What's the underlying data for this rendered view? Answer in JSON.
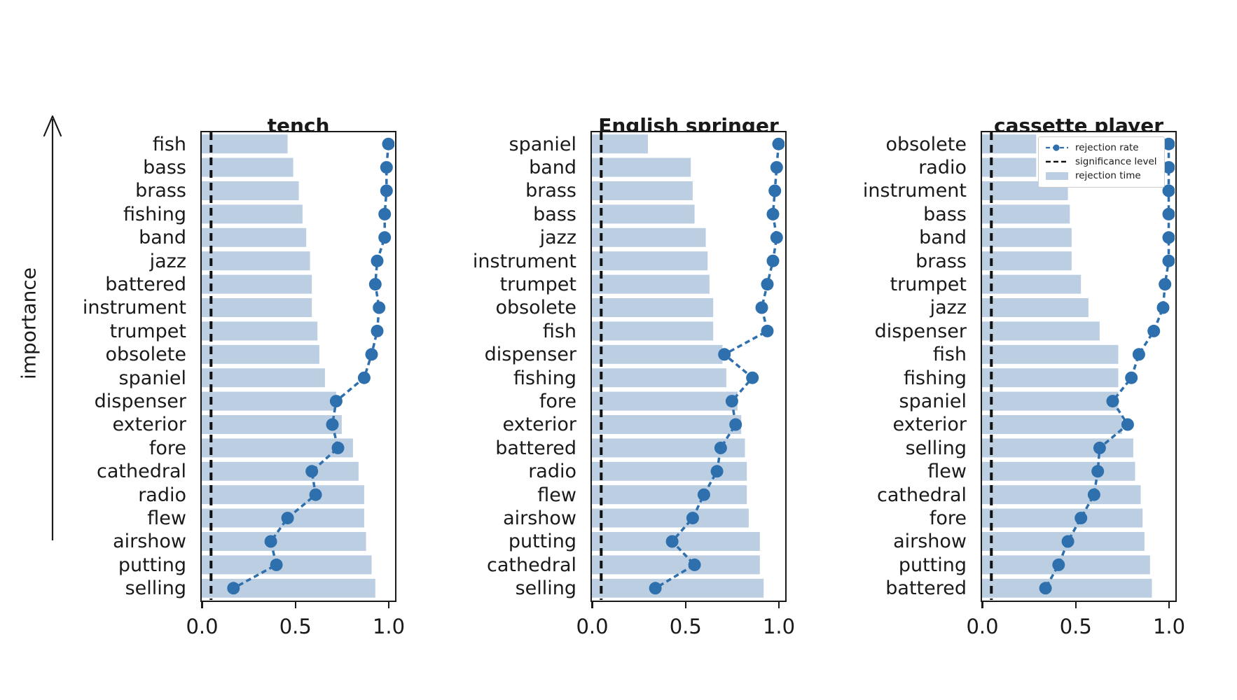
{
  "figure": {
    "yaxis": {
      "label": "importance",
      "arrow_direction": "up"
    },
    "colors": {
      "bar_fill": "#bccfe2",
      "rate_blue": "#2e6fad",
      "significance_black": "#111111",
      "frame": "#1a1a1a",
      "text": "#1a1a1a"
    },
    "x_axis": {
      "tick_labels": [
        "0.0",
        "0.5",
        "1.0"
      ],
      "tick_values": [
        0,
        0.5,
        1
      ]
    }
  },
  "legend": {
    "items": [
      {
        "label": "rejection rate",
        "swatch": "blue-dashed-line-with-dot"
      },
      {
        "label": "significance level",
        "swatch": "black-dashed-line"
      },
      {
        "label": "rejection time",
        "swatch": "lightblue-patch"
      }
    ]
  },
  "chart_data": [
    {
      "type": "bar",
      "orientation": "horizontal",
      "title": "tench",
      "xlim": [
        0,
        1.04
      ],
      "xticks": [
        0,
        0.5,
        1
      ],
      "significance_level": 0.05,
      "categories": [
        "fish",
        "bass",
        "brass",
        "fishing",
        "band",
        "jazz",
        "battered",
        "instrument",
        "trumpet",
        "obsolete",
        "spaniel",
        "dispenser",
        "exterior",
        "fore",
        "cathedral",
        "radio",
        "flew",
        "airshow",
        "putting",
        "selling"
      ],
      "series": [
        {
          "name": "rejection time",
          "type": "bar",
          "values": [
            0.46,
            0.49,
            0.52,
            0.54,
            0.56,
            0.58,
            0.59,
            0.59,
            0.62,
            0.63,
            0.66,
            0.72,
            0.75,
            0.81,
            0.84,
            0.87,
            0.87,
            0.88,
            0.91,
            0.93
          ]
        },
        {
          "name": "rejection rate",
          "type": "line",
          "values": [
            1.0,
            0.99,
            0.99,
            0.98,
            0.98,
            0.94,
            0.93,
            0.95,
            0.94,
            0.91,
            0.87,
            0.72,
            0.7,
            0.73,
            0.59,
            0.61,
            0.46,
            0.37,
            0.4,
            0.17
          ]
        }
      ]
    },
    {
      "type": "bar",
      "orientation": "horizontal",
      "title": "English springer",
      "xlim": [
        0,
        1.04
      ],
      "xticks": [
        0,
        0.5,
        1
      ],
      "significance_level": 0.05,
      "categories": [
        "spaniel",
        "band",
        "brass",
        "bass",
        "jazz",
        "instrument",
        "trumpet",
        "obsolete",
        "fish",
        "dispenser",
        "fishing",
        "fore",
        "exterior",
        "battered",
        "radio",
        "flew",
        "airshow",
        "putting",
        "cathedral",
        "selling"
      ],
      "series": [
        {
          "name": "rejection time",
          "type": "bar",
          "values": [
            0.3,
            0.53,
            0.54,
            0.55,
            0.61,
            0.62,
            0.63,
            0.65,
            0.65,
            0.7,
            0.72,
            0.78,
            0.8,
            0.82,
            0.83,
            0.83,
            0.84,
            0.9,
            0.9,
            0.92
          ]
        },
        {
          "name": "rejection rate",
          "type": "line",
          "values": [
            1.0,
            0.99,
            0.98,
            0.97,
            0.99,
            0.97,
            0.94,
            0.91,
            0.94,
            0.71,
            0.86,
            0.75,
            0.77,
            0.69,
            0.67,
            0.6,
            0.54,
            0.43,
            0.55,
            0.34
          ]
        }
      ]
    },
    {
      "type": "bar",
      "orientation": "horizontal",
      "title": "cassette player",
      "xlim": [
        0,
        1.04
      ],
      "xticks": [
        0,
        0.5,
        1
      ],
      "significance_level": 0.05,
      "categories": [
        "obsolete",
        "radio",
        "instrument",
        "bass",
        "band",
        "brass",
        "trumpet",
        "jazz",
        "dispenser",
        "fish",
        "fishing",
        "spaniel",
        "exterior",
        "selling",
        "flew",
        "cathedral",
        "fore",
        "airshow",
        "putting",
        "battered"
      ],
      "series": [
        {
          "name": "rejection time",
          "type": "bar",
          "values": [
            0.29,
            0.29,
            0.46,
            0.47,
            0.48,
            0.48,
            0.53,
            0.57,
            0.63,
            0.73,
            0.73,
            0.73,
            0.75,
            0.81,
            0.82,
            0.85,
            0.86,
            0.87,
            0.9,
            0.91
          ]
        },
        {
          "name": "rejection rate",
          "type": "line",
          "values": [
            1.0,
            1.0,
            1.0,
            1.0,
            1.0,
            1.0,
            0.98,
            0.97,
            0.92,
            0.84,
            0.8,
            0.7,
            0.78,
            0.63,
            0.62,
            0.6,
            0.53,
            0.46,
            0.41,
            0.34
          ]
        }
      ]
    }
  ]
}
